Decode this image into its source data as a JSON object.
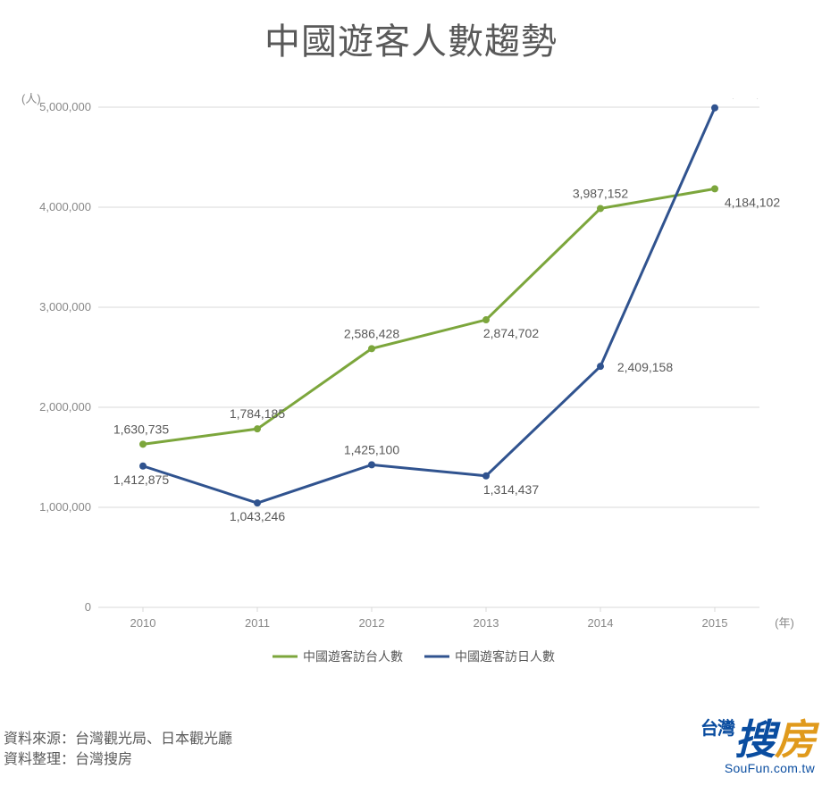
{
  "title": "中國遊客人數趨勢",
  "y_axis_unit": "(人)",
  "x_axis_unit": "(年)",
  "source_label": "資料來源：",
  "source_value": "台灣觀光局、日本觀光廳",
  "compiled_label": "資料整理：",
  "compiled_value": "台灣搜房",
  "logo_text_tai": "台灣",
  "logo_text_sou": "搜",
  "logo_text_fang": "房",
  "logo_url": "SouFun.com.tw",
  "chart": {
    "type": "line",
    "background_color": "#ffffff",
    "grid_color": "#d9d9d9",
    "axis_text_color": "#888888",
    "data_label_color": "#595959",
    "title_fontsize": 40,
    "label_fontsize": 14,
    "axis_fontsize": 13,
    "line_width": 3,
    "marker_size": 4,
    "marker_style": "circle",
    "xlim": [
      2010,
      2015
    ],
    "ylim": [
      0,
      5000000
    ],
    "ytick_step": 1000000,
    "yticks": [
      0,
      1000000,
      2000000,
      3000000,
      4000000,
      5000000
    ],
    "ytick_labels": [
      "0",
      "1,000,000",
      "2,000,000",
      "3,000,000",
      "4,000,000",
      "5,000,000"
    ],
    "categories": [
      "2010",
      "2011",
      "2012",
      "2013",
      "2014",
      "2015"
    ],
    "series": [
      {
        "name": "中國遊客訪台人數",
        "color": "#7ca63c",
        "values": [
          1630735,
          1784185,
          2586428,
          2874702,
          3987152,
          4184102
        ],
        "labels": [
          "1,630,735",
          "1,784,185",
          "2,586,428",
          "2,874,702",
          "3,987,152",
          "4,184,102"
        ]
      },
      {
        "name": "中國遊客訪日人數",
        "color": "#30538f",
        "values": [
          1412875,
          1043246,
          1425100,
          1314437,
          2409158,
          4993689
        ],
        "labels": [
          "1,412,875",
          "1,043,246",
          "1,425,100",
          "1,314,437",
          "2,409,158",
          "4,993,689"
        ]
      }
    ],
    "legend_position": "bottom"
  }
}
